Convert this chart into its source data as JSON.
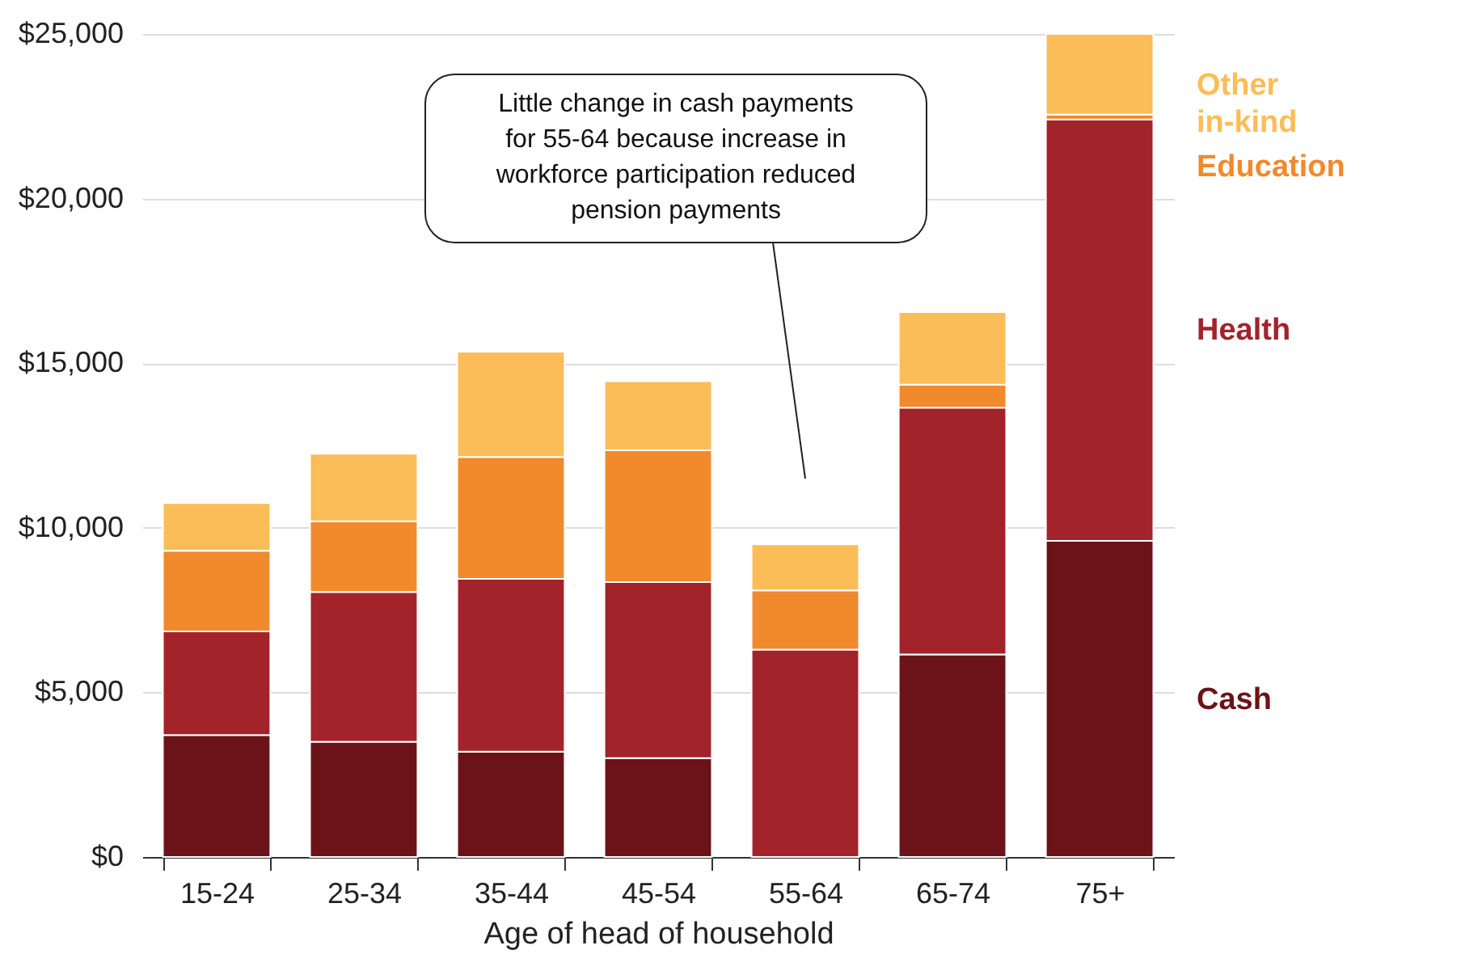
{
  "chart_data": {
    "type": "bar",
    "stacked": true,
    "xlabel": "Age of head of household",
    "categories": [
      "15-24",
      "25-34",
      "35-44",
      "45-54",
      "55-64",
      "65-74",
      "75+"
    ],
    "series": [
      {
        "name": "Cash",
        "color": "#6b1318",
        "values": [
          3700,
          3500,
          3200,
          3000,
          0,
          6150,
          9600
        ]
      },
      {
        "name": "Health",
        "color": "#a3232b",
        "values": [
          3150,
          4550,
          5250,
          5350,
          6300,
          7500,
          12800
        ]
      },
      {
        "name": "Education",
        "color": "#f08a2c",
        "values": [
          2450,
          2150,
          3700,
          4000,
          1800,
          700,
          150
        ]
      },
      {
        "name": "Other in-kind",
        "color": "#fbbd58",
        "values": [
          1450,
          2050,
          3200,
          2100,
          1400,
          2200,
          2450
        ]
      }
    ],
    "ylim": [
      0,
      25000
    ],
    "yticks": [
      {
        "value": 0,
        "label": "$0"
      },
      {
        "value": 5000,
        "label": "$5,000"
      },
      {
        "value": 10000,
        "label": "$10,000"
      },
      {
        "value": 15000,
        "label": "$15,000"
      },
      {
        "value": 20000,
        "label": "$20,000"
      },
      {
        "value": 25000,
        "label": "$25,000"
      }
    ],
    "grid": "y",
    "legend": "right",
    "annotations": [
      "Little change in cash payments for 55-64 because increase in workforce participation reduced pension payments"
    ]
  }
}
